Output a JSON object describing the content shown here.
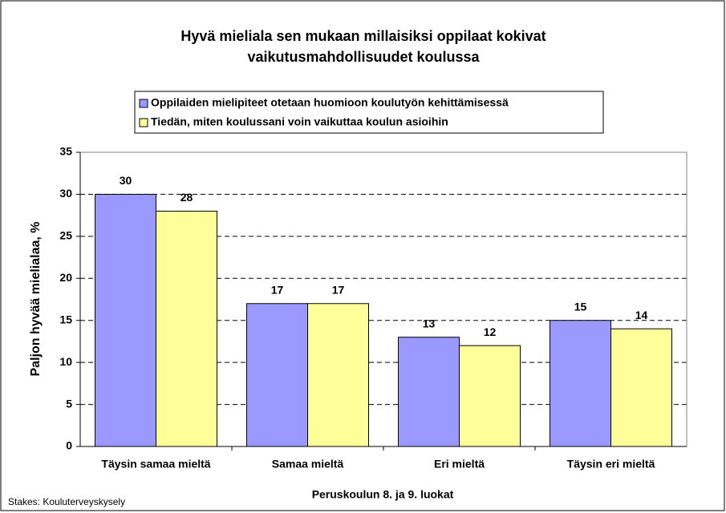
{
  "chart_data": {
    "type": "bar",
    "title": [
      "Hyvä mieliala sen mukaan millaisiksi oppilaat kokivat",
      "vaikutusmahdollisuudet koulussa"
    ],
    "x_label": "Peruskoulun 8. ja 9. luokat",
    "y_label": "Paljon hyvää mielialaa, %",
    "source": "Stakes: Kouluterveyskysely",
    "categories": [
      "Täysin samaa mieltä",
      "Samaa mieltä",
      "Eri mieltä",
      "Täysin eri mieltä"
    ],
    "series": [
      {
        "name": "Oppilaiden mielipiteet otetaan huomioon koulutyön kehittämisessä",
        "color": "#9999ff",
        "values": [
          30,
          17,
          13,
          15
        ]
      },
      {
        "name": "Tiedän, miten koulussani voin vaikuttaa koulun asioihin",
        "color": "#ffff99",
        "values": [
          28,
          17,
          12,
          14
        ]
      }
    ],
    "ylim": [
      0,
      35
    ],
    "yticks": [
      0,
      5,
      10,
      15,
      20,
      25,
      30,
      35
    ],
    "grid": true,
    "legend": "top"
  }
}
